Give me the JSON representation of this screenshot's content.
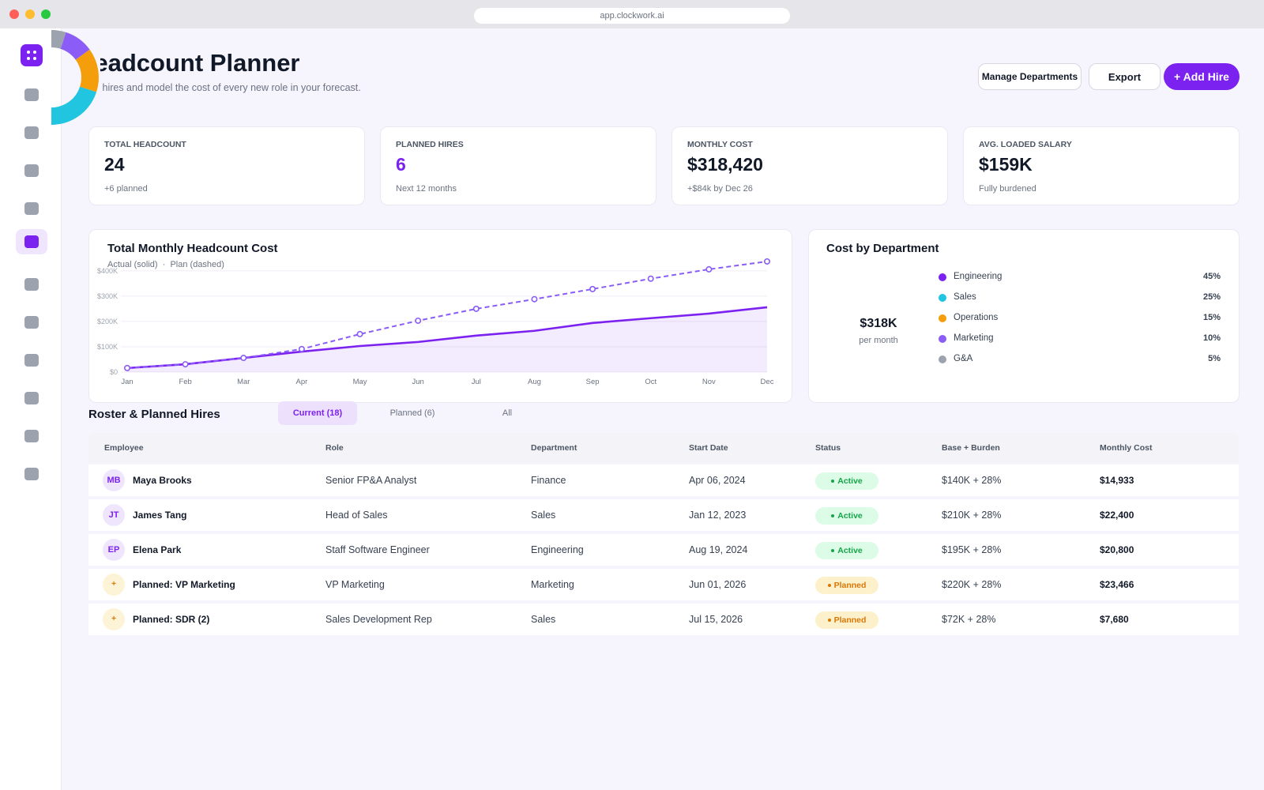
{
  "browser": {
    "url": "app.clockwork.ai"
  },
  "header": {
    "title": "Headcount Planner",
    "subtitle": "Plan hires and model the cost of every new role in your forecast."
  },
  "actions": [
    "Manage Departments",
    "Export",
    "+ Add Hire"
  ],
  "kpis": [
    {
      "label": "TOTAL HEADCOUNT",
      "value": "24",
      "note": "+6 planned"
    },
    {
      "label": "PLANNED HIRES",
      "value": "6",
      "note": "Next 12 months"
    },
    {
      "label": "MONTHLY COST",
      "value": "$318,420",
      "note": "+$84k by Dec 26"
    },
    {
      "label": "AVG. LOADED SALARY",
      "value": "$159K",
      "note": "Fully burdened"
    }
  ],
  "line_chart": {
    "type": "line",
    "title": "Total Monthly Headcount Cost",
    "subtitle": "Actual (solid)  ·  Plan (dashed)",
    "categories": [
      "Jan",
      "Feb",
      "Mar",
      "Apr",
      "May",
      "Jun",
      "Jul",
      "Aug",
      "Sep",
      "Oct",
      "Nov",
      "Dec"
    ],
    "series": [
      {
        "style": "dashed",
        "color": "#8b5cf6",
        "values": [
          16,
          31,
          56,
          91,
          150,
          203,
          250,
          288,
          328,
          369,
          406,
          437
        ]
      },
      {
        "style": "solid",
        "color": "#7c22f0",
        "values": [
          16,
          31,
          56,
          81,
          103,
          119,
          144,
          163,
          194,
          213,
          231,
          256
        ]
      }
    ],
    "ylim": [
      0,
      440
    ],
    "yticks": [
      {
        "value": 0,
        "label": "$0"
      },
      {
        "value": 100,
        "label": "$100K"
      },
      {
        "value": 200,
        "label": "$200K"
      },
      {
        "value": 300,
        "label": "$300K"
      },
      {
        "value": 400,
        "label": "$400K"
      }
    ],
    "grid": true
  },
  "donut_chart": {
    "type": "donut",
    "title": "Cost by Department",
    "center_value": "$318K",
    "center_label": "per month",
    "categories": [
      "Engineering",
      "Sales",
      "Operations",
      "Marketing",
      "G&A"
    ],
    "values": [
      45,
      25,
      15,
      10,
      5
    ],
    "value_labels": [
      "45%",
      "25%",
      "15%",
      "10%",
      "5%"
    ],
    "colors": [
      "#7c22f0",
      "#22c5e0",
      "#f59e0b",
      "#8b5cf6",
      "#9ca3af"
    ]
  },
  "roster": {
    "title": "Roster & Planned Hires",
    "tabs": [
      "Current (18)",
      "Planned (6)",
      "All"
    ],
    "active_tab": 0,
    "columns": [
      "Employee",
      "Role",
      "Department",
      "Start Date",
      "Status",
      "Base + Burden",
      "Monthly Cost"
    ],
    "rows": [
      {
        "initials": "MB",
        "name": "Maya Brooks",
        "role": "Senior FP&A Analyst",
        "department": "Finance",
        "start": "Apr 06, 2024",
        "status": "Active",
        "base": "$140K + 28%",
        "cost": "$14,933"
      },
      {
        "initials": "JT",
        "name": "James Tang",
        "role": "Head of Sales",
        "department": "Sales",
        "start": "Jan 12, 2023",
        "status": "Active",
        "base": "$210K + 28%",
        "cost": "$22,400"
      },
      {
        "initials": "EP",
        "name": "Elena Park",
        "role": "Staff Software Engineer",
        "department": "Engineering",
        "start": "Aug 19, 2024",
        "status": "Active",
        "base": "$195K + 28%",
        "cost": "$20,800"
      },
      {
        "initials": "+",
        "name": "Planned: VP Marketing",
        "role": "VP Marketing",
        "department": "Marketing",
        "start": "Jun 01, 2026",
        "status": "Planned",
        "base": "$220K + 28%",
        "cost": "$23,466"
      },
      {
        "initials": "+",
        "name": "Planned: SDR (2)",
        "role": "Sales Development Rep",
        "department": "Sales",
        "start": "Jul 15, 2026",
        "status": "Planned",
        "base": "$72K + 28%",
        "cost": "$7,680"
      }
    ]
  }
}
